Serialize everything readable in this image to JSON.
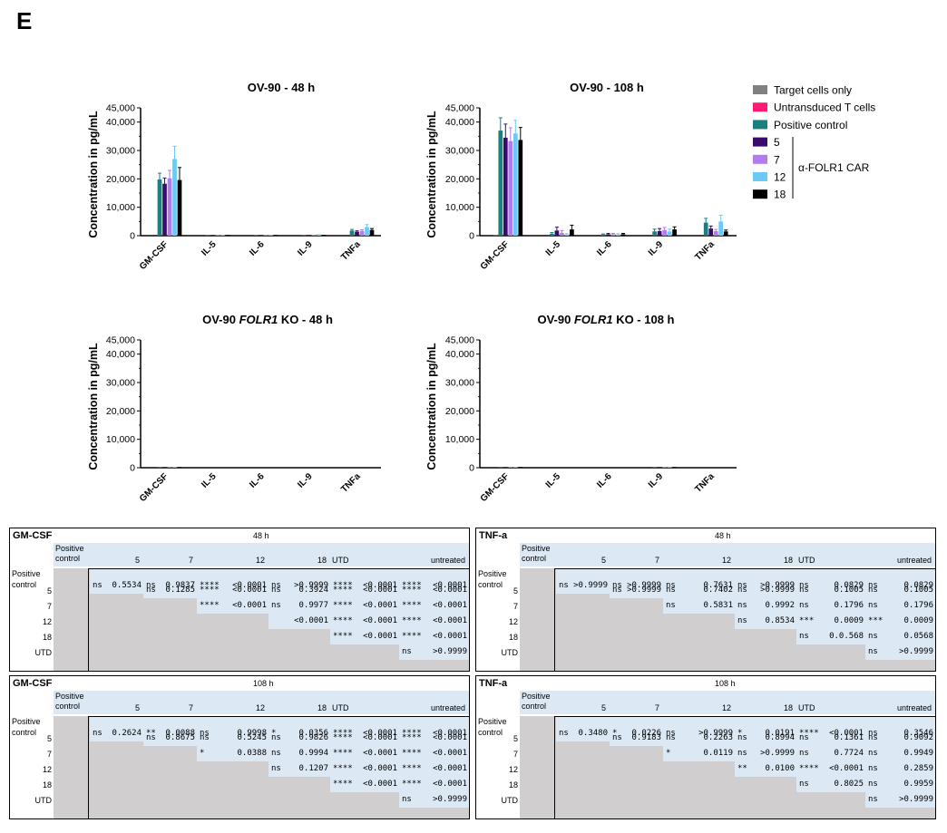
{
  "panel_letter": "E",
  "legend": {
    "items": [
      {
        "label": "Target cells only",
        "color": "#808080"
      },
      {
        "label": "Untransduced T cells",
        "color": "#ff1a75"
      },
      {
        "label": "Positive control",
        "color": "#1a7f7f"
      },
      {
        "label": "5",
        "color": "#3a0a6e"
      },
      {
        "label": "7",
        "color": "#b27cf0"
      },
      {
        "label": "12",
        "color": "#6ac9f5"
      },
      {
        "label": "18",
        "color": "#000000"
      }
    ],
    "car_label": "α-FOLR1 CAR"
  },
  "chart_data": [
    {
      "type": "bar",
      "title": "OV-90 - 48 h",
      "title_parts": [
        "OV-90 - 48 h"
      ],
      "ylabel": "Concentration in pg/mL",
      "ylim": [
        0,
        45000
      ],
      "yticks": [
        "0",
        "10,000",
        "20,000",
        "30,000",
        "40,000",
        "45,000"
      ],
      "categories": [
        "GM-CSF",
        "IL-5",
        "IL-6",
        "IL-9",
        "TNFa"
      ],
      "series": [
        {
          "name": "Target cells only",
          "values": [
            0,
            0,
            0,
            0,
            0
          ],
          "errors": [
            0,
            0,
            0,
            0,
            0
          ]
        },
        {
          "name": "Untransduced T cells",
          "values": [
            0,
            0,
            0,
            0,
            0
          ],
          "errors": [
            0,
            0,
            0,
            0,
            0
          ]
        },
        {
          "name": "Positive control",
          "values": [
            19800,
            200,
            150,
            250,
            1800
          ],
          "errors": [
            2200,
            0,
            0,
            0,
            400
          ]
        },
        {
          "name": "5",
          "values": [
            18300,
            150,
            150,
            200,
            1400
          ],
          "errors": [
            2000,
            0,
            0,
            0,
            300
          ]
        },
        {
          "name": "7",
          "values": [
            20200,
            150,
            150,
            300,
            1700
          ],
          "errors": [
            2800,
            0,
            0,
            0,
            400
          ]
        },
        {
          "name": "12",
          "values": [
            27000,
            200,
            200,
            500,
            3000
          ],
          "errors": [
            4500,
            0,
            0,
            0,
            900
          ]
        },
        {
          "name": "18",
          "values": [
            19600,
            150,
            150,
            300,
            2000
          ],
          "errors": [
            4400,
            0,
            0,
            0,
            500
          ]
        }
      ]
    },
    {
      "type": "bar",
      "title": "OV-90 - 108 h",
      "title_parts": [
        "OV-90 - 108 h"
      ],
      "ylabel": "Concentration in pg/mL",
      "ylim": [
        0,
        45000
      ],
      "yticks": [
        "0",
        "10,000",
        "20,000",
        "30,000",
        "40,000",
        "45,000"
      ],
      "categories": [
        "GM-CSF",
        "IL-5",
        "IL-6",
        "IL-9",
        "TNFa"
      ],
      "series": [
        {
          "name": "Target cells only",
          "values": [
            0,
            0,
            0,
            0,
            0
          ],
          "errors": [
            0,
            0,
            0,
            0,
            0
          ]
        },
        {
          "name": "Untransduced T cells",
          "values": [
            200,
            0,
            0,
            0,
            0
          ],
          "errors": [
            0,
            0,
            0,
            0,
            0
          ]
        },
        {
          "name": "Positive control",
          "values": [
            37000,
            700,
            400,
            1500,
            4600
          ],
          "errors": [
            4500,
            400,
            200,
            800,
            1500
          ]
        },
        {
          "name": "5",
          "values": [
            34500,
            1800,
            500,
            1600,
            2500
          ],
          "errors": [
            4800,
            1200,
            300,
            900,
            900
          ]
        },
        {
          "name": "7",
          "values": [
            33300,
            1000,
            500,
            2000,
            1600
          ],
          "errors": [
            4700,
            800,
            300,
            900,
            600
          ]
        },
        {
          "name": "12",
          "values": [
            36000,
            400,
            400,
            1500,
            5000
          ],
          "errors": [
            4600,
            300,
            300,
            800,
            2200
          ]
        },
        {
          "name": "18",
          "values": [
            33700,
            2200,
            500,
            2200,
            1500
          ],
          "errors": [
            4400,
            1500,
            300,
            900,
            500
          ]
        }
      ]
    },
    {
      "type": "bar",
      "title": "OV-90 FOLR1 KO - 48 h",
      "title_parts": [
        "OV-90 ",
        "FOLR1",
        " KO - 48 h"
      ],
      "ylabel": "Concentration in pg/mL",
      "ylim": [
        0,
        45000
      ],
      "yticks": [
        "0",
        "10,000",
        "20,000",
        "30,000",
        "40,000",
        "45,000"
      ],
      "categories": [
        "GM-CSF",
        "IL-5",
        "IL-6",
        "IL-9",
        "TNFa"
      ],
      "series": [
        {
          "name": "Target cells only",
          "values": [
            0,
            0,
            0,
            0,
            0
          ],
          "errors": [
            0,
            0,
            0,
            0,
            0
          ]
        },
        {
          "name": "Untransduced T cells",
          "values": [
            0,
            0,
            0,
            0,
            0
          ],
          "errors": [
            0,
            0,
            0,
            0,
            0
          ]
        },
        {
          "name": "Positive control",
          "values": [
            100,
            0,
            0,
            0,
            0
          ],
          "errors": [
            0,
            0,
            0,
            0,
            0
          ]
        },
        {
          "name": "5",
          "values": [
            100,
            0,
            0,
            0,
            0
          ],
          "errors": [
            0,
            0,
            0,
            0,
            0
          ]
        },
        {
          "name": "7",
          "values": [
            100,
            0,
            0,
            0,
            0
          ],
          "errors": [
            0,
            0,
            0,
            0,
            0
          ]
        },
        {
          "name": "12",
          "values": [
            100,
            0,
            0,
            0,
            0
          ],
          "errors": [
            0,
            0,
            0,
            0,
            0
          ]
        },
        {
          "name": "18",
          "values": [
            100,
            0,
            0,
            0,
            0
          ],
          "errors": [
            0,
            0,
            0,
            0,
            0
          ]
        }
      ]
    },
    {
      "type": "bar",
      "title": "OV-90 FOLR1 KO - 108 h",
      "title_parts": [
        "OV-90 ",
        "FOLR1",
        " KO - 108 h"
      ],
      "ylabel": "Concentration in pg/mL",
      "ylim": [
        0,
        45000
      ],
      "yticks": [
        "0",
        "10,000",
        "20,000",
        "30,000",
        "40,000",
        "45,000"
      ],
      "categories": [
        "GM-CSF",
        "IL-5",
        "IL-6",
        "IL-9",
        "TNFa"
      ],
      "series": [
        {
          "name": "Target cells only",
          "values": [
            0,
            0,
            0,
            0,
            0
          ],
          "errors": [
            0,
            0,
            0,
            0,
            0
          ]
        },
        {
          "name": "Untransduced T cells",
          "values": [
            0,
            0,
            0,
            0,
            0
          ],
          "errors": [
            0,
            0,
            0,
            0,
            0
          ]
        },
        {
          "name": "Positive control",
          "values": [
            100,
            0,
            0,
            100,
            0
          ],
          "errors": [
            0,
            0,
            0,
            0,
            0
          ]
        },
        {
          "name": "5",
          "values": [
            100,
            0,
            0,
            100,
            0
          ],
          "errors": [
            0,
            0,
            0,
            0,
            0
          ]
        },
        {
          "name": "7",
          "values": [
            100,
            0,
            0,
            200,
            0
          ],
          "errors": [
            0,
            0,
            0,
            0,
            0
          ]
        },
        {
          "name": "12",
          "values": [
            100,
            0,
            0,
            200,
            0
          ],
          "errors": [
            0,
            0,
            0,
            0,
            0
          ]
        },
        {
          "name": "18",
          "values": [
            100,
            0,
            0,
            100,
            0
          ],
          "errors": [
            0,
            0,
            0,
            0,
            0
          ]
        }
      ]
    }
  ],
  "stat_tables": [
    {
      "name": "GM-CSF",
      "time": "48 h",
      "col_headers": [
        "5",
        "7",
        "12",
        "18",
        "UTD",
        "untreated"
      ],
      "row_headers": [
        "Positive control",
        "5",
        "7",
        "12",
        "18",
        "UTD"
      ],
      "cells": [
        [
          {
            "sig": "ns",
            "p": "0.5534"
          },
          {
            "sig": "ns",
            "p": "0.9837"
          },
          {
            "sig": "****",
            "p": "<0.0001"
          },
          {
            "sig": "ns",
            "p": ">0.9999"
          },
          {
            "sig": "****",
            "p": "<0.0001"
          },
          {
            "sig": "****",
            "p": "<0.0001"
          }
        ],
        [
          {
            "sig": "ns",
            "p": "0.1285"
          },
          {
            "sig": "****",
            "p": "<0.0001"
          },
          {
            "sig": "ns",
            "p": "0.3924"
          },
          {
            "sig": "****",
            "p": "<0.0001"
          },
          {
            "sig": "****",
            "p": "<0.0001"
          }
        ],
        [
          {
            "sig": "****",
            "p": "<0.0001"
          },
          {
            "sig": "ns",
            "p": "0.9977"
          },
          {
            "sig": "****",
            "p": "<0.0001"
          },
          {
            "sig": "****",
            "p": "<0.0001"
          }
        ],
        [
          {
            "sig": "",
            "p": "<0.0001"
          },
          {
            "sig": "****",
            "p": "<0.0001"
          },
          {
            "sig": "****",
            "p": "<0.0001"
          }
        ],
        [
          {
            "sig": "****",
            "p": "<0.0001"
          },
          {
            "sig": "****",
            "p": "<0.0001"
          }
        ],
        [
          {
            "sig": "ns",
            "p": ">0.9999"
          }
        ]
      ]
    },
    {
      "name": "TNF-a",
      "time": "48 h",
      "col_headers": [
        "5",
        "7",
        "12",
        "18",
        "UTD",
        "untreated"
      ],
      "row_headers": [
        "Positive control",
        "5",
        "7",
        "12",
        "18",
        "UTD"
      ],
      "cells": [
        [
          {
            "sig": "ns",
            "p": ">0.9999"
          },
          {
            "sig": "ns",
            "p": ">0.9999"
          },
          {
            "sig": "ns",
            "p": "0.7631"
          },
          {
            "sig": "ns",
            "p": ">0.9999"
          },
          {
            "sig": "ns",
            "p": "0.0829"
          },
          {
            "sig": "ns",
            "p": "0.0829"
          }
        ],
        [
          {
            "sig": "ns",
            "p": ">0.9999"
          },
          {
            "sig": "ns",
            "p": "0.7402"
          },
          {
            "sig": "ns",
            "p": ">0.9999"
          },
          {
            "sig": "ns",
            "p": "0.1005"
          },
          {
            "sig": "ns",
            "p": "0.1005"
          }
        ],
        [
          {
            "sig": "ns",
            "p": "0.5831"
          },
          {
            "sig": "ns",
            "p": "0.9992"
          },
          {
            "sig": "ns",
            "p": "0.1796"
          },
          {
            "sig": "ns",
            "p": "0.1796"
          }
        ],
        [
          {
            "sig": "ns",
            "p": "0.8534"
          },
          {
            "sig": "***",
            "p": "0.0009"
          },
          {
            "sig": "***",
            "p": "0.0009"
          }
        ],
        [
          {
            "sig": "ns",
            "p": "0.0.568"
          },
          {
            "sig": "ns",
            "p": "0.0568"
          }
        ],
        [
          {
            "sig": "ns",
            "p": ">0.9999"
          }
        ]
      ]
    },
    {
      "name": "GM-CSF",
      "time": "108 h",
      "col_headers": [
        "5",
        "7",
        "12",
        "18",
        "UTD",
        "untreated"
      ],
      "row_headers": [
        "Positive control",
        "5",
        "7",
        "12",
        "18",
        "UTD"
      ],
      "cells": [
        [
          {
            "sig": "ns",
            "p": "0.2624"
          },
          {
            "sig": "**",
            "p": "0.0088"
          },
          {
            "sig": "ns",
            "p": "0.9998"
          },
          {
            "sig": "*",
            "p": "0.0356"
          },
          {
            "sig": "****",
            "p": "<0.0001"
          },
          {
            "sig": "****",
            "p": "<0.0001"
          }
        ],
        [
          {
            "sig": "ns",
            "p": "0.8675"
          },
          {
            "sig": "ns",
            "p": "0.5245"
          },
          {
            "sig": "ns",
            "p": "0.9826"
          },
          {
            "sig": "****",
            "p": "<0.0001"
          },
          {
            "sig": "****",
            "p": "<0.0001"
          }
        ],
        [
          {
            "sig": "*",
            "p": "0.0388"
          },
          {
            "sig": "ns",
            "p": "0.9994"
          },
          {
            "sig": "****",
            "p": "<0.0001"
          },
          {
            "sig": "****",
            "p": "<0.0001"
          }
        ],
        [
          {
            "sig": "ns",
            "p": "0.1207"
          },
          {
            "sig": "****",
            "p": "<0.0001"
          },
          {
            "sig": "****",
            "p": "<0.0001"
          }
        ],
        [
          {
            "sig": "****",
            "p": "<0.0001"
          },
          {
            "sig": "****",
            "p": "<0.0001"
          }
        ],
        [
          {
            "sig": "ns",
            "p": ">0.9999"
          }
        ]
      ]
    },
    {
      "name": "TNF-a",
      "time": "108 h",
      "col_headers": [
        "5",
        "7",
        "12",
        "18",
        "UTD",
        "untreated"
      ],
      "row_headers": [
        "Positive control",
        "5",
        "7",
        "12",
        "18",
        "UTD"
      ],
      "cells": [
        [
          {
            "sig": "ns",
            "p": "0.3480"
          },
          {
            "sig": "*",
            "p": "0.0226"
          },
          {
            "sig": "ns",
            "p": ">0.9999"
          },
          {
            "sig": "*",
            "p": "0.0191"
          },
          {
            "sig": "****",
            "p": "<0.0001"
          },
          {
            "sig": "ns",
            "p": "0.3546"
          }
        ],
        [
          {
            "sig": "ns",
            "p": "0.9183"
          },
          {
            "sig": "ns",
            "p": "0.2263"
          },
          {
            "sig": "ns",
            "p": "0.8994"
          },
          {
            "sig": "ns",
            "p": "0.1361"
          },
          {
            "sig": "ns",
            "p": "0.9092"
          }
        ],
        [
          {
            "sig": "*",
            "p": "0.0119"
          },
          {
            "sig": "ns",
            "p": ">0.9999"
          },
          {
            "sig": "ns",
            "p": "0.7724"
          },
          {
            "sig": "ns",
            "p": "0.9949"
          }
        ],
        [
          {
            "sig": "**",
            "p": "0.0100"
          },
          {
            "sig": "****",
            "p": "<0.0001"
          },
          {
            "sig": "ns",
            "p": "0.2859"
          }
        ],
        [
          {
            "sig": "ns",
            "p": "0.8025"
          },
          {
            "sig": "ns",
            "p": "0.9959"
          }
        ],
        [
          {
            "sig": "ns",
            "p": ">0.9999"
          }
        ]
      ]
    }
  ]
}
